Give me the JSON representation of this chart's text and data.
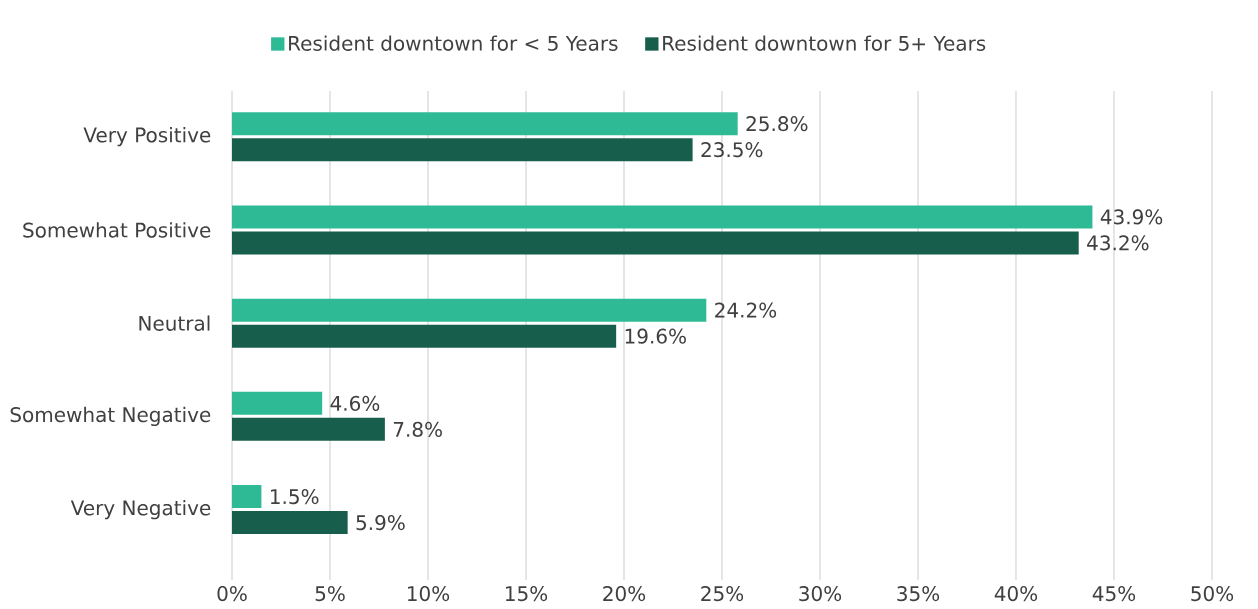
{
  "chart_data": {
    "type": "bar",
    "orientation": "horizontal",
    "categories": [
      "Very Positive",
      "Somewhat Positive",
      "Neutral",
      "Somewhat Negative",
      "Very Negative"
    ],
    "series": [
      {
        "name": "Resident downtown for < 5 Years",
        "color": "#2fba96",
        "values": [
          25.8,
          43.9,
          24.2,
          4.6,
          1.5
        ],
        "value_labels": [
          "25.8%",
          "43.9%",
          "24.2%",
          "4.6%",
          "1.5%"
        ]
      },
      {
        "name": "Resident downtown for 5+ Years",
        "color": "#175e4c",
        "values": [
          23.5,
          43.2,
          19.6,
          7.8,
          5.9
        ],
        "value_labels": [
          "23.5%",
          "43.2%",
          "19.6%",
          "7.8%",
          "5.9%"
        ]
      }
    ],
    "xlim": [
      0,
      50
    ],
    "xticks": [
      {
        "value": 0,
        "label": "0%"
      },
      {
        "value": 5,
        "label": "5%"
      },
      {
        "value": 10,
        "label": "10%"
      },
      {
        "value": 15,
        "label": "15%"
      },
      {
        "value": 20,
        "label": "20%"
      },
      {
        "value": 25,
        "label": "25%"
      },
      {
        "value": 30,
        "label": "30%"
      },
      {
        "value": 35,
        "label": "35%"
      },
      {
        "value": 40,
        "label": "40%"
      },
      {
        "value": 45,
        "label": "45%"
      },
      {
        "value": 50,
        "label": "50%"
      }
    ],
    "grid": "x",
    "legend": "top"
  }
}
